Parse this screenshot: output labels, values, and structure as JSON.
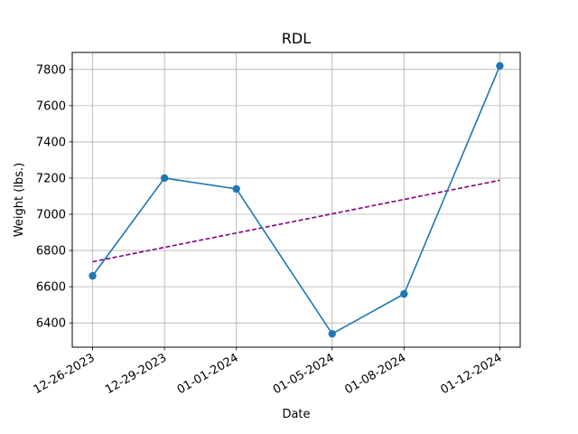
{
  "chart_data": {
    "type": "line",
    "title": "RDL",
    "xlabel": "Date",
    "ylabel": "Weight (lbs.)",
    "x_days": [
      0,
      3,
      6,
      10,
      13,
      17
    ],
    "categories": [
      "12-26-2023",
      "12-29-2023",
      "01-01-2024",
      "01-05-2024",
      "01-08-2024",
      "01-12-2024"
    ],
    "series": [
      {
        "name": "Weight",
        "values": [
          6660,
          7200,
          7140,
          6340,
          6560,
          7820
        ],
        "color": "#1f77b4",
        "style": "solid",
        "marker": "circle"
      }
    ],
    "trend": {
      "name": "Trend",
      "start": 6738,
      "end": 7188,
      "color": "#800080",
      "style": "dashed"
    },
    "yticks": [
      6400,
      6600,
      6800,
      7000,
      7200,
      7400,
      7600,
      7800
    ],
    "ylim": [
      6266,
      7894
    ],
    "xlim": [
      -0.85,
      17.85
    ],
    "grid": true
  }
}
